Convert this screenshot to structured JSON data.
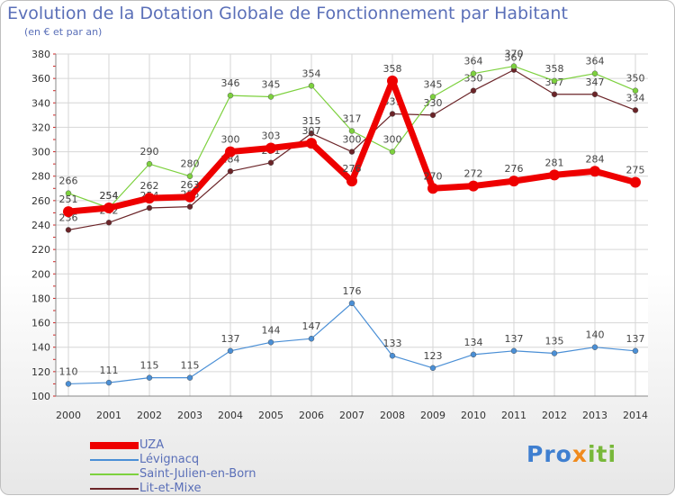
{
  "header": {
    "title": "Evolution de la Dotation Globale de Fonctionnement par Habitant",
    "subtitle": "(en € et par an)"
  },
  "logo": {
    "part1": "Pro",
    "part2": "x",
    "part3": "iti"
  },
  "chart_data": {
    "type": "line",
    "title": "Evolution de la Dotation Globale de Fonctionnement par Habitant",
    "subtitle": "(en € et par an)",
    "xlabel": "",
    "ylabel": "",
    "ylim": [
      100,
      380
    ],
    "yticks": [
      100,
      120,
      140,
      160,
      180,
      200,
      220,
      240,
      260,
      280,
      300,
      320,
      340,
      360,
      380
    ],
    "grid": true,
    "legend_position": "bottom-left",
    "x": [
      "2000",
      "2001",
      "2002",
      "2003",
      "2004",
      "2005",
      "2006",
      "2007",
      "2008",
      "2009",
      "2010",
      "2011",
      "2012",
      "2013",
      "2014"
    ],
    "series": [
      {
        "name": "UZA",
        "color": "#ee0000",
        "values": [
          251,
          254,
          262,
          263,
          300,
          303,
          307,
          276,
          358,
          270,
          272,
          276,
          281,
          284,
          275
        ]
      },
      {
        "name": "Lévignacq",
        "color": "#4a8fd6",
        "values": [
          110,
          111,
          115,
          115,
          137,
          144,
          147,
          176,
          133,
          123,
          134,
          137,
          135,
          140,
          137
        ]
      },
      {
        "name": "Saint-Julien-en-Born",
        "color": "#7dd13e",
        "values": [
          266,
          254,
          290,
          280,
          346,
          345,
          354,
          317,
          300,
          345,
          364,
          370,
          358,
          364,
          350
        ]
      },
      {
        "name": "Lit-et-Mixe",
        "color": "#6b2428",
        "values": [
          236,
          242,
          254,
          255,
          284,
          291,
          315,
          300,
          331,
          330,
          350,
          367,
          347,
          347,
          334
        ]
      }
    ]
  }
}
